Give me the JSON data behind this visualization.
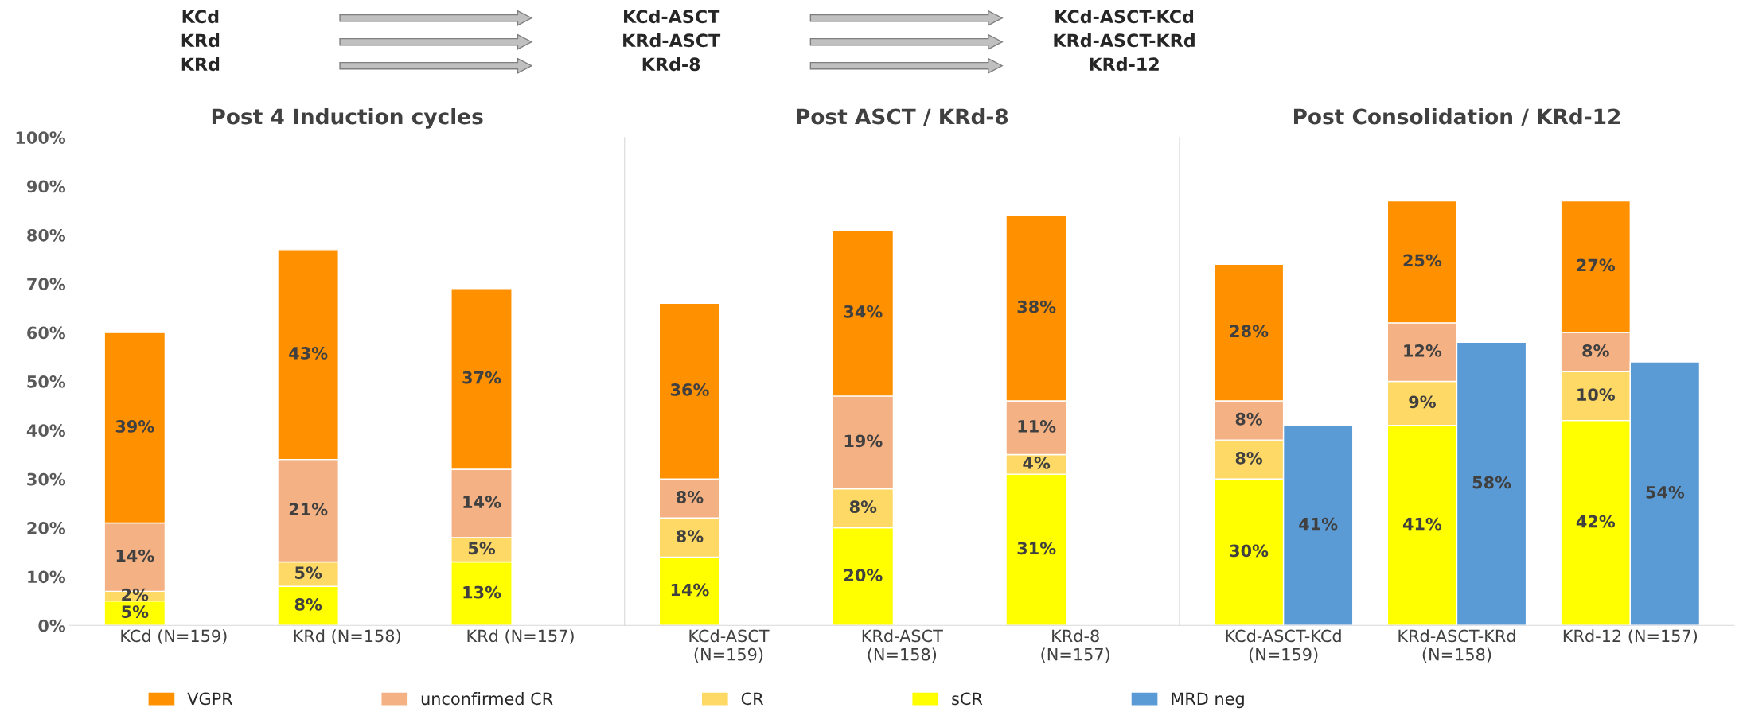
{
  "chart_data": [
    {
      "type": "bar",
      "stacked": true,
      "title": "Post 4 Induction cycles",
      "annotations": [
        "KCd",
        "KCd-ASCT",
        "KCd-ASCT-KCd",
        "KRd",
        "KRd-ASCT",
        "KRd-ASCT-KRd",
        "KRd",
        "KRd-8",
        "KRd-12"
      ],
      "categories": [
        "KCd (N=159)",
        "KRd (N=158)",
        "KRd (N=157)"
      ],
      "series": [
        {
          "color": "#ffff00",
          "values": [
            5,
            8,
            13
          ],
          "value_labels": [
            "5%",
            "8%",
            "13%"
          ]
        },
        {
          "color": "#ffd966",
          "values": [
            2,
            5,
            5
          ],
          "value_labels": [
            "2%",
            "5%",
            "5%"
          ]
        },
        {
          "color": "#f4b183",
          "values": [
            14,
            21,
            14
          ],
          "value_labels": [
            "14%",
            "21%",
            "14%"
          ]
        },
        {
          "color": "#ff9100",
          "values": [
            39,
            43,
            37
          ],
          "value_labels": [
            "39%",
            "43%",
            "37%"
          ]
        }
      ],
      "ylim": [
        0,
        100
      ],
      "yticks": [
        {
          "value": 0,
          "label": "0%"
        },
        {
          "value": 10,
          "label": "10%"
        },
        {
          "value": 20,
          "label": "20%"
        },
        {
          "value": 30,
          "label": "30%"
        },
        {
          "value": 40,
          "label": "40%"
        },
        {
          "value": 50,
          "label": "50%"
        },
        {
          "value": 60,
          "label": "60%"
        },
        {
          "value": 70,
          "label": "70%"
        },
        {
          "value": 80,
          "label": "80%"
        },
        {
          "value": 90,
          "label": "90%"
        },
        {
          "value": 100,
          "label": "100%"
        }
      ],
      "grid": false
    },
    {
      "type": "bar",
      "stacked": true,
      "title": "Post ASCT / KRd-8",
      "categories": [
        "KCd-ASCT\n(N=159)",
        "KRd-ASCT\n(N=158)",
        "KRd-8\n(N=157)"
      ],
      "series": [
        {
          "color": "#ffff00",
          "values": [
            14,
            20,
            31
          ],
          "value_labels": [
            "14%",
            "20%",
            "31%"
          ]
        },
        {
          "color": "#ffd966",
          "values": [
            8,
            8,
            4
          ],
          "value_labels": [
            "8%",
            "8%",
            "4%"
          ]
        },
        {
          "color": "#f4b183",
          "values": [
            8,
            19,
            11
          ],
          "value_labels": [
            "8%",
            "19%",
            "11%"
          ]
        },
        {
          "color": "#ff9100",
          "values": [
            36,
            34,
            38
          ],
          "value_labels": [
            "36%",
            "34%",
            "38%"
          ]
        }
      ],
      "ylim": [
        0,
        100
      ],
      "tick_labels": "x",
      "grid": false
    },
    {
      "type": "bar",
      "title": "Post Consolidation / KRd-12",
      "categories": [
        "KCd-ASCT-KCd\n(N=159)",
        "KRd-ASCT-KRd\n(N=158)",
        "KRd-12 (N=157)"
      ],
      "series": [
        {
          "name": "sCR",
          "color": "#ffff00",
          "base": [
            0,
            0,
            0
          ],
          "values": [
            30,
            41,
            42
          ],
          "value_labels": [
            "30%",
            "41%",
            "42%"
          ]
        },
        {
          "name": "CR",
          "color": "#ffd966",
          "base": [
            30,
            41,
            42
          ],
          "values": [
            8,
            9,
            10
          ],
          "value_labels": [
            "8%",
            "9%",
            "10%"
          ]
        },
        {
          "name": "unconfirmed CR",
          "color": "#f4b183",
          "base": [
            38,
            50,
            52
          ],
          "values": [
            8,
            12,
            8
          ],
          "value_labels": [
            "8%",
            "12%",
            "8%"
          ]
        },
        {
          "name": "VGPR",
          "color": "#ff9100",
          "base": [
            46,
            62,
            60
          ],
          "values": [
            28,
            25,
            27
          ],
          "value_labels": [
            "28%",
            "25%",
            "27%"
          ]
        },
        {
          "name": "MRD neg",
          "color": "#5b9bd5",
          "values": [
            41,
            58,
            54
          ],
          "value_labels": [
            "41%",
            "58%",
            "54%"
          ]
        }
      ],
      "ylim": [
        0,
        100
      ],
      "tick_labels": "x",
      "grid": false,
      "legend": "bottom"
    }
  ]
}
